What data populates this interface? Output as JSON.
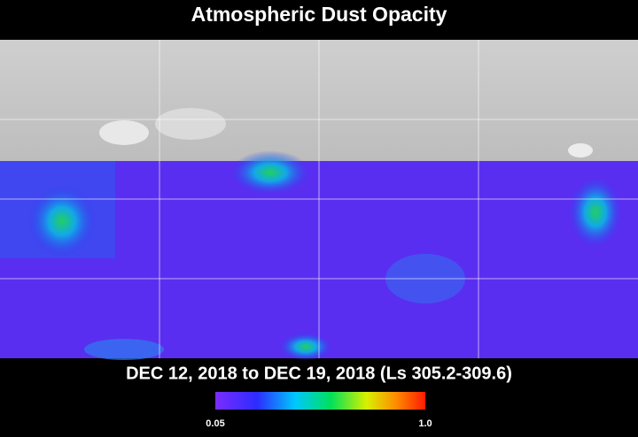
{
  "title": "Atmospheric Dust Opacity",
  "subtitle": "DEC 12, 2018 to DEC 19, 2018 (Ls 305.2-309.6)",
  "colorbar": {
    "range": [
      0.05,
      1
    ],
    "ticks": [
      0.05,
      {
        "value": 1,
        "label": "1.0"
      }
    ]
  }
}
